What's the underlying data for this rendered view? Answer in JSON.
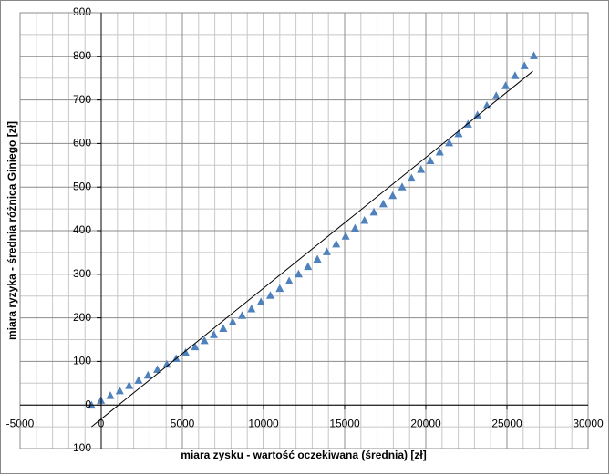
{
  "chart_data": {
    "type": "scatter",
    "x_label": "miara zysku  - wartość oczekiwana  (średnia)  [zł]",
    "y_label": "miara ryzyka  - średnia różnica Giniego [zł]",
    "xlim": [
      -5000,
      30000
    ],
    "xticks": [
      -5000,
      0,
      5000,
      10000,
      15000,
      20000,
      25000,
      30000
    ],
    "ylim": [
      -100,
      900
    ],
    "yticks": [
      -100,
      0,
      100,
      200,
      300,
      400,
      500,
      600,
      700,
      800,
      900
    ],
    "grid": true,
    "series": [
      {
        "color": "#4f81bd",
        "marker": "triangle",
        "x": [
          -600,
          -20,
          560,
          1140,
          1720,
          2300,
          2880,
          3460,
          4040,
          4620,
          5200,
          5780,
          6360,
          6940,
          7520,
          8100,
          8680,
          9260,
          9840,
          10420,
          11000,
          11580,
          12160,
          12740,
          13320,
          13900,
          14480,
          15060,
          15640,
          16220,
          16800,
          17380,
          17960,
          18540,
          19120,
          19700,
          20280,
          20860,
          21440,
          22020,
          22600,
          23180,
          23760,
          24340,
          24920,
          25500,
          26080,
          26660
        ],
        "values": [
          -1,
          10,
          21,
          32,
          44,
          56,
          68,
          81,
          93,
          106,
          120,
          133,
          147,
          161,
          175,
          190,
          205,
          220,
          236,
          251,
          267,
          284,
          300,
          317,
          334,
          351,
          369,
          387,
          405,
          423,
          442,
          461,
          480,
          500,
          520,
          540,
          560,
          580,
          601,
          622,
          644,
          665,
          687,
          709,
          732,
          755,
          778,
          801
        ]
      },
      {
        "color": "#000000",
        "marker": "line",
        "x": [
          -600,
          26600
        ],
        "values": [
          -50,
          766
        ]
      }
    ]
  }
}
